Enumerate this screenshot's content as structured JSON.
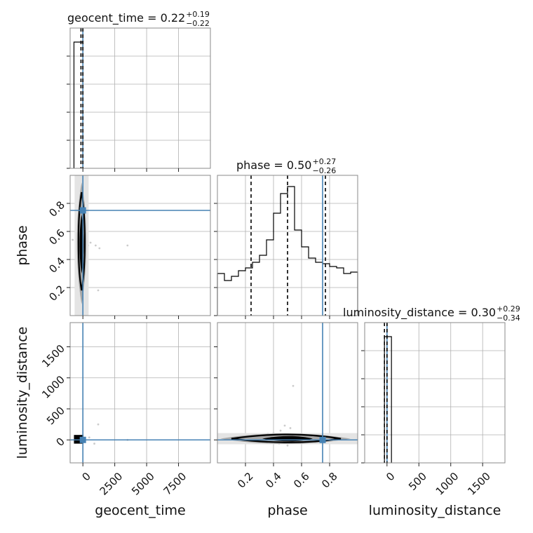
{
  "chart_data": [
    {
      "type": "histogram",
      "panel": "geocent_time-marginal",
      "title": "geocent_time = 0.22",
      "title_sup": "+0.19",
      "title_sub": "−0.22",
      "xlim": [
        -1000,
        10000
      ],
      "xticks": [
        0,
        2500,
        5000,
        7500
      ],
      "quantiles": [
        -150,
        0
      ],
      "injection": 0,
      "grid": true,
      "bins": [
        {
          "x0": -700,
          "x1": 0,
          "h": 0.9
        },
        {
          "x0": 0,
          "x1": 50,
          "h": 0.0
        }
      ]
    },
    {
      "type": "histogram",
      "panel": "phase-marginal",
      "title": "phase = 0.50",
      "title_sup": "+0.27",
      "title_sub": "−0.26",
      "xlim": [
        0,
        1
      ],
      "quantiles": [
        0.24,
        0.5,
        0.77
      ],
      "injection": 0.75,
      "grid": true,
      "bins": [
        {
          "x0": 0.0,
          "x1": 0.05,
          "h": 0.3
        },
        {
          "x0": 0.05,
          "x1": 0.1,
          "h": 0.25
        },
        {
          "x0": 0.1,
          "x1": 0.15,
          "h": 0.28
        },
        {
          "x0": 0.15,
          "x1": 0.2,
          "h": 0.32
        },
        {
          "x0": 0.2,
          "x1": 0.25,
          "h": 0.34
        },
        {
          "x0": 0.25,
          "x1": 0.3,
          "h": 0.38
        },
        {
          "x0": 0.3,
          "x1": 0.35,
          "h": 0.43
        },
        {
          "x0": 0.35,
          "x1": 0.4,
          "h": 0.54
        },
        {
          "x0": 0.4,
          "x1": 0.45,
          "h": 0.73
        },
        {
          "x0": 0.45,
          "x1": 0.5,
          "h": 0.87
        },
        {
          "x0": 0.5,
          "x1": 0.55,
          "h": 0.92
        },
        {
          "x0": 0.55,
          "x1": 0.6,
          "h": 0.61
        },
        {
          "x0": 0.6,
          "x1": 0.65,
          "h": 0.49
        },
        {
          "x0": 0.65,
          "x1": 0.7,
          "h": 0.41
        },
        {
          "x0": 0.7,
          "x1": 0.75,
          "h": 0.38
        },
        {
          "x0": 0.75,
          "x1": 0.8,
          "h": 0.37
        },
        {
          "x0": 0.8,
          "x1": 0.85,
          "h": 0.35
        },
        {
          "x0": 0.85,
          "x1": 0.9,
          "h": 0.34
        },
        {
          "x0": 0.9,
          "x1": 0.95,
          "h": 0.3
        },
        {
          "x0": 0.95,
          "x1": 1.0,
          "h": 0.31
        }
      ]
    },
    {
      "type": "histogram",
      "panel": "luminosity_distance-marginal",
      "title": "luminosity_distance = 0.30",
      "title_sup": "+0.29",
      "title_sub": "−0.34",
      "xlim": [
        -350,
        1850
      ],
      "xticks": [
        0,
        500,
        1000,
        1500
      ],
      "quantiles": [
        -40,
        0
      ],
      "injection": 0,
      "grid": true,
      "bins": [
        {
          "x0": -40,
          "x1": 70,
          "h": 0.9
        }
      ]
    },
    {
      "type": "scatter",
      "panel": "phase-vs-geocent_time",
      "xlabel": "",
      "ylabel": "phase",
      "xlim": [
        -1000,
        10000
      ],
      "ylim": [
        0,
        1
      ],
      "yticks": [
        0.2,
        0.4,
        0.6,
        0.8
      ],
      "injection": [
        0,
        0.75
      ],
      "points": [
        {
          "x": -300,
          "y": 0.52
        },
        {
          "x": 200,
          "y": 0.55
        },
        {
          "x": 400,
          "y": 0.5
        },
        {
          "x": 600,
          "y": 0.52
        },
        {
          "x": -500,
          "y": 0.46
        },
        {
          "x": 1000,
          "y": 0.5
        },
        {
          "x": 1300,
          "y": 0.48
        },
        {
          "x": 1200,
          "y": 0.18
        },
        {
          "x": 3500,
          "y": 0.5
        },
        {
          "x": -800,
          "y": 0.54
        },
        {
          "x": 300,
          "y": 0.44
        },
        {
          "x": 100,
          "y": 0.3
        }
      ]
    },
    {
      "type": "scatter",
      "panel": "luminosity_distance-vs-geocent_time",
      "xlabel": "geocent_time",
      "ylabel": "luminosity_distance",
      "xlim": [
        -1000,
        10000
      ],
      "ylim": [
        -370,
        1890
      ],
      "xticks": [
        0,
        2500,
        5000,
        7500
      ],
      "yticks": [
        0,
        500,
        1000,
        1500
      ],
      "injection": [
        0,
        0
      ],
      "points": [
        {
          "x": 1200,
          "y": 250
        },
        {
          "x": 900,
          "y": -60
        },
        {
          "x": 3500,
          "y": 0
        },
        {
          "x": -400,
          "y": 20
        },
        {
          "x": 500,
          "y": 40
        }
      ]
    },
    {
      "type": "scatter",
      "panel": "luminosity_distance-vs-phase",
      "xlabel": "phase",
      "ylabel": "",
      "xlim": [
        0,
        1
      ],
      "ylim": [
        -370,
        1890
      ],
      "xticks": [
        0.2,
        0.4,
        0.6,
        0.8
      ],
      "injection": [
        0.75,
        0
      ],
      "points": [
        {
          "x": 0.54,
          "y": 870
        },
        {
          "x": 0.48,
          "y": 230
        },
        {
          "x": 0.45,
          "y": 150
        },
        {
          "x": 0.52,
          "y": 190
        },
        {
          "x": 0.4,
          "y": 110
        },
        {
          "x": 0.6,
          "y": 90
        },
        {
          "x": 0.3,
          "y": 60
        },
        {
          "x": 0.7,
          "y": 70
        },
        {
          "x": 0.5,
          "y": -90
        },
        {
          "x": 0.44,
          "y": -60
        },
        {
          "x": 0.57,
          "y": -40
        },
        {
          "x": 0.36,
          "y": 100
        }
      ]
    }
  ],
  "colors": {
    "hist": "#000000",
    "quantile": "#000000",
    "injection": "#4682b4",
    "grid": "#b0b0b0",
    "density_light": "#e4e4e4",
    "density_mid": "#a8a8a8",
    "scatter": "#cccccc"
  }
}
